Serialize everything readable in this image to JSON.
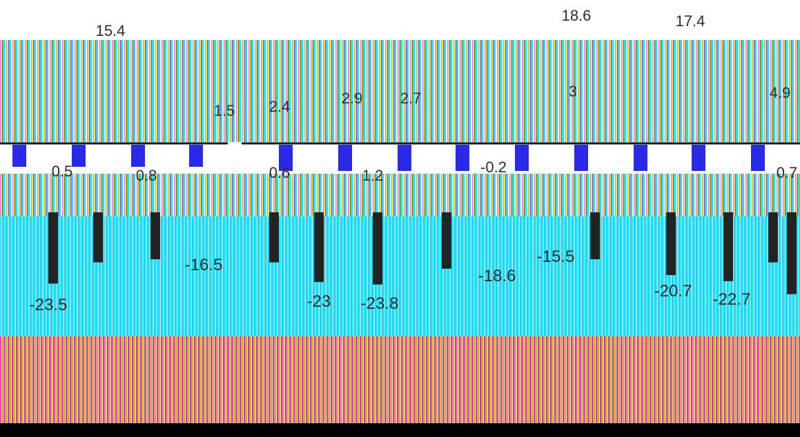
{
  "chart_data": [
    {
      "type": "bar",
      "values_visible": [
        {
          "label": "15.4",
          "value": 15.4
        },
        {
          "label": "18.6",
          "value": 18.6
        },
        {
          "label": "17.4",
          "value": 17.4
        }
      ]
    },
    {
      "type": "bar",
      "data_labels": [
        "1.5",
        "2.4",
        "2.9",
        "2.7",
        "3",
        "4.9"
      ]
    },
    {
      "type": "bar",
      "data_labels": [
        "0.5",
        "0.8",
        "0.6",
        "1.2",
        "-0.2",
        "0.7"
      ]
    },
    {
      "type": "bar",
      "values": [
        -23.5,
        -16.5,
        -23,
        -23.8,
        -18.6,
        -15.5,
        -20.7,
        -22.7
      ],
      "data_labels": [
        "-23.5",
        "-16.5",
        "-23",
        "-23.8",
        "-18.6",
        "-15.5",
        "-20.7",
        "-22.7"
      ]
    }
  ],
  "colors": {
    "bar_blue": "#2a2ae6",
    "bar_dark": "#232323",
    "cyan": "#34e6ff",
    "label": "#2b2b2b"
  }
}
